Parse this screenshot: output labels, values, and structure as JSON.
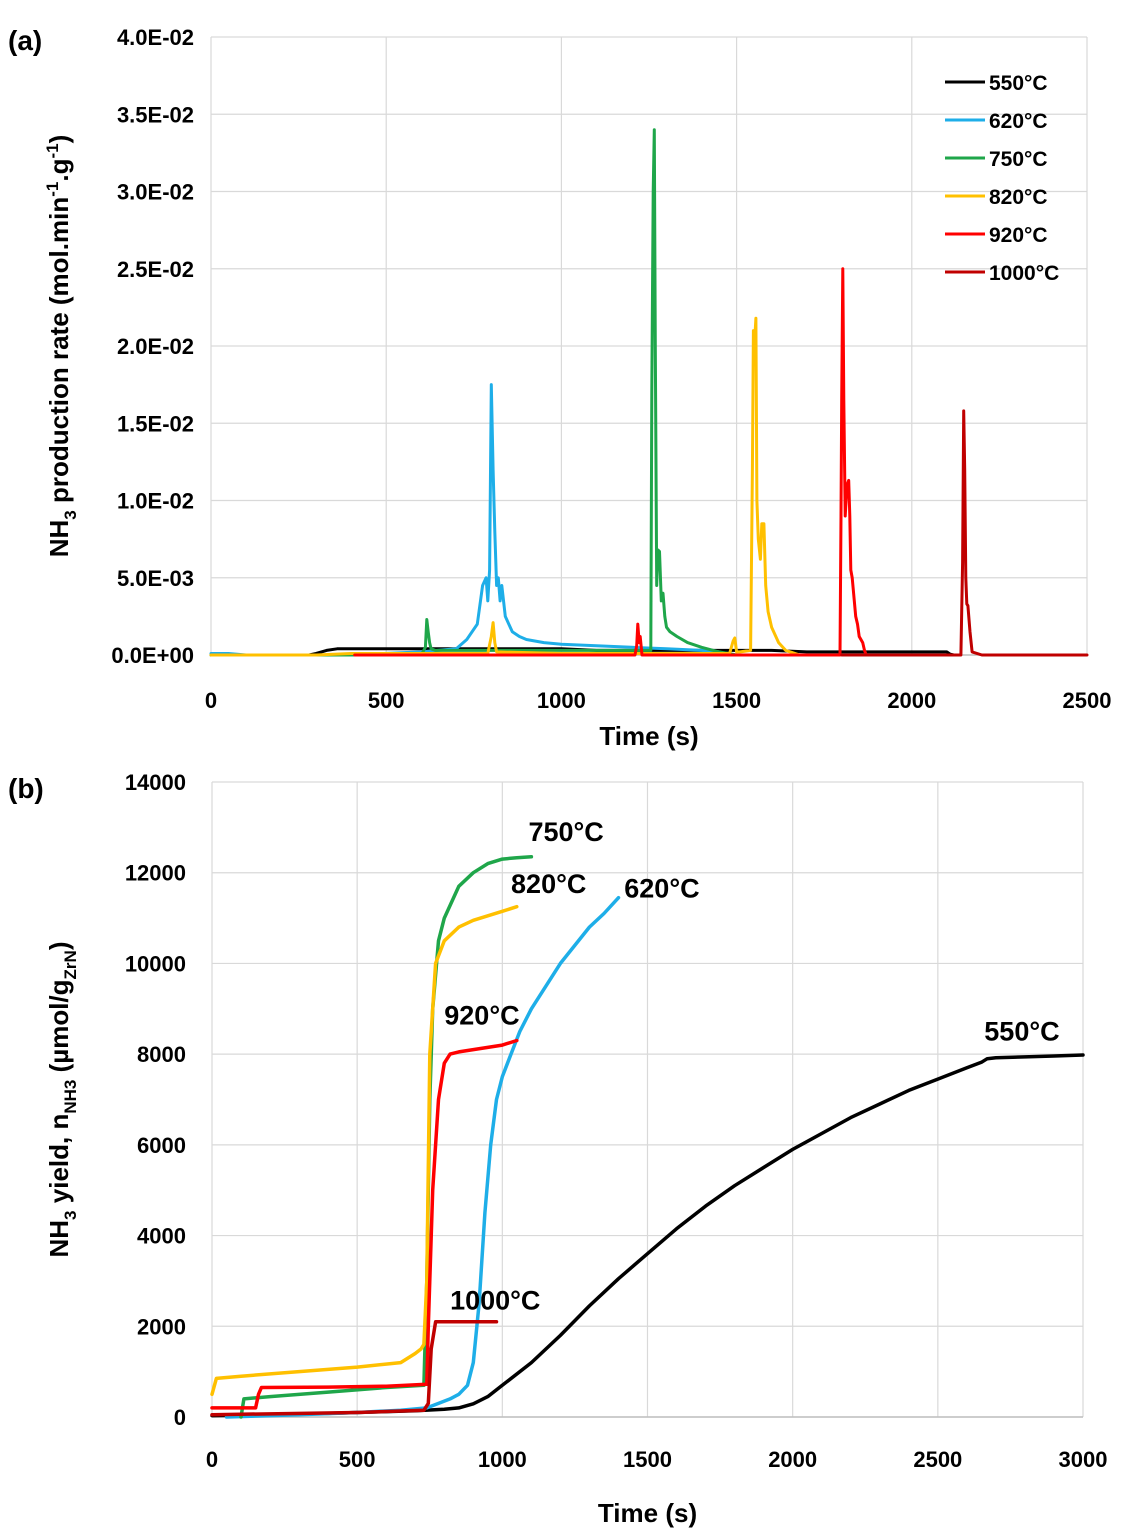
{
  "figure": {
    "panels": [
      "(a)",
      "(b)"
    ]
  },
  "chart_data": [
    {
      "type": "line",
      "panel_label": "(a)",
      "xlabel": "Time (s)",
      "ylabel_parts": [
        "NH",
        "3",
        " production rate (mol.min",
        "-1",
        ".g",
        "-1",
        ")"
      ],
      "xlim": [
        0,
        2500
      ],
      "ylim": [
        0,
        0.04
      ],
      "xticks": [
        "0",
        "500",
        "1000",
        "1500",
        "2000",
        "2500"
      ],
      "yticks": [
        "0.0E+00",
        "5.0E-03",
        "1.0E-02",
        "1.5E-02",
        "2.0E-02",
        "2.5E-02",
        "3.0E-02",
        "3.5E-02",
        "4.0E-02"
      ],
      "grid": true,
      "legend_position": "top-right",
      "series": [
        {
          "name": "550°C",
          "color": "#000000",
          "x": [
            0,
            280,
            300,
            330,
            360,
            400,
            500,
            600,
            700,
            800,
            900,
            1000,
            1100,
            1200,
            1300,
            1400,
            1500,
            1600,
            1700,
            1800,
            1900,
            2000,
            2100,
            2110,
            2120
          ],
          "y": [
            0,
            0,
            0.0001,
            0.0003,
            0.0004,
            0.0004,
            0.0004,
            0.0004,
            0.0004,
            0.0004,
            0.0004,
            0.0004,
            0.0003,
            0.0003,
            0.0003,
            0.0003,
            0.0003,
            0.0003,
            0.0002,
            0.0002,
            0.0002,
            0.0002,
            0.0002,
            5e-05,
            0
          ]
        },
        {
          "name": "620°C",
          "color": "#1EAEE8",
          "x": [
            0,
            50,
            100,
            200,
            300,
            400,
            600,
            700,
            730,
            760,
            775,
            785,
            790,
            795,
            800,
            805,
            810,
            815,
            820,
            825,
            830,
            840,
            850,
            860,
            880,
            900,
            950,
            1000,
            1100,
            1200,
            1300,
            1400,
            1450,
            1480
          ],
          "y": [
            0.0001,
            0.0001,
            0,
            0,
            0,
            0,
            0.0002,
            0.0004,
            0.001,
            0.002,
            0.0045,
            0.005,
            0.0035,
            0.0055,
            0.0175,
            0.012,
            0.008,
            0.0045,
            0.005,
            0.0035,
            0.0045,
            0.0025,
            0.002,
            0.0015,
            0.0012,
            0.001,
            0.0008,
            0.0007,
            0.0006,
            0.0005,
            0.0004,
            0.0003,
            0.0002,
            0
          ]
        },
        {
          "name": "750°C",
          "color": "#1FA64A",
          "x": [
            0,
            400,
            600,
            612,
            616,
            620,
            624,
            628,
            640,
            800,
            1000,
            1200,
            1255,
            1258,
            1262,
            1265,
            1268,
            1272,
            1275,
            1280,
            1285,
            1290,
            1295,
            1300,
            1310,
            1330,
            1360,
            1400,
            1450,
            1500
          ],
          "y": [
            0,
            0,
            0,
            0.0005,
            0.0023,
            0.0015,
            0.0008,
            0.0004,
            0.0003,
            0.0003,
            0.0003,
            0.0003,
            0.0003,
            0.017,
            0.03,
            0.034,
            0.02,
            0.0045,
            0.0068,
            0.0067,
            0.0035,
            0.004,
            0.0025,
            0.0018,
            0.0015,
            0.0012,
            0.0008,
            0.0005,
            0.0002,
            0
          ]
        },
        {
          "name": "820°C",
          "color": "#FFC000",
          "x": [
            0,
            300,
            400,
            500,
            700,
            790,
            800,
            805,
            810,
            815,
            1000,
            1200,
            1480,
            1490,
            1495,
            1500,
            1510,
            1540,
            1545,
            1548,
            1552,
            1555,
            1558,
            1562,
            1568,
            1572,
            1578,
            1583,
            1590,
            1600,
            1620,
            1640,
            1680
          ],
          "y": [
            0,
            0,
            0.0001,
            0.0001,
            0.0001,
            0.0001,
            0.0012,
            0.0021,
            0.0008,
            0.0002,
            0.0001,
            0.0001,
            0.0001,
            0.0009,
            0.0011,
            0.0002,
            0.0002,
            0.0003,
            0.012,
            0.021,
            0.0205,
            0.0218,
            0.01,
            0.0075,
            0.0062,
            0.0085,
            0.0085,
            0.0045,
            0.0028,
            0.0018,
            0.0008,
            0.0003,
            0
          ]
        },
        {
          "name": "920°C",
          "color": "#FF0000",
          "x": [
            410,
            1210,
            1215,
            1218,
            1222,
            1225,
            1230,
            1795,
            1798,
            1800,
            1803,
            1806,
            1810,
            1815,
            1820,
            1823,
            1826,
            1830,
            1840,
            1845,
            1850,
            1860,
            1865,
            1870
          ],
          "y": [
            0,
            0,
            0.0006,
            0.002,
            0.0008,
            0.0012,
            0,
            0,
            0.009,
            0.0165,
            0.025,
            0.0165,
            0.009,
            0.011,
            0.0113,
            0.009,
            0.0055,
            0.005,
            0.0025,
            0.002,
            0.0012,
            0.0008,
            0.0003,
            0
          ]
        },
        {
          "name": "1000°C",
          "color": "#C00000",
          "x": [
            1800,
            2140,
            2145,
            2148,
            2151,
            2154,
            2157,
            2160,
            2166,
            2172,
            2200,
            2500
          ],
          "y": [
            0,
            0,
            0.006,
            0.0158,
            0.012,
            0.005,
            0.0033,
            0.0032,
            0.0015,
            0.0002,
            0,
            0
          ]
        }
      ]
    },
    {
      "type": "line",
      "panel_label": "(b)",
      "xlabel": "Time (s)",
      "ylabel_parts": [
        "NH",
        "3",
        " yield, n",
        "NH3",
        " (µmol/g",
        "ZrN",
        ")"
      ],
      "xlim": [
        0,
        3000
      ],
      "ylim": [
        0,
        14000
      ],
      "xticks": [
        "0",
        "500",
        "1000",
        "1500",
        "2000",
        "2500",
        "3000"
      ],
      "yticks": [
        "0",
        "2000",
        "4000",
        "6000",
        "8000",
        "10000",
        "12000",
        "14000"
      ],
      "grid": true,
      "series": [
        {
          "name": "550°C",
          "color": "#000000",
          "x": [
            0,
            200,
            400,
            600,
            700,
            800,
            850,
            900,
            950,
            1000,
            1100,
            1200,
            1300,
            1400,
            1500,
            1600,
            1700,
            1800,
            1900,
            2000,
            2100,
            2200,
            2300,
            2400,
            2500,
            2600,
            2650,
            2670,
            2700,
            2800,
            2900,
            3000
          ],
          "y": [
            30,
            50,
            80,
            120,
            140,
            170,
            200,
            290,
            450,
            700,
            1200,
            1800,
            2450,
            3050,
            3600,
            4150,
            4650,
            5100,
            5500,
            5900,
            6250,
            6600,
            6900,
            7200,
            7450,
            7700,
            7820,
            7900,
            7920,
            7940,
            7960,
            7980
          ]
        },
        {
          "name": "620°C",
          "color": "#1EAEE8",
          "x": [
            50,
            300,
            500,
            650,
            740,
            780,
            820,
            850,
            880,
            900,
            920,
            940,
            960,
            980,
            1000,
            1030,
            1060,
            1100,
            1200,
            1300,
            1350,
            1400
          ],
          "y": [
            0,
            50,
            100,
            150,
            200,
            300,
            400,
            500,
            700,
            1200,
            2500,
            4500,
            6000,
            7000,
            7500,
            8000,
            8500,
            9000,
            10000,
            10800,
            11100,
            11450
          ]
        },
        {
          "name": "750°C",
          "color": "#1FA64A",
          "x": [
            100,
            110,
            200,
            400,
            600,
            730,
            740,
            750,
            760,
            780,
            800,
            850,
            900,
            950,
            1000,
            1050,
            1100
          ],
          "y": [
            0,
            400,
            450,
            550,
            650,
            700,
            3000,
            7000,
            9000,
            10500,
            11000,
            11700,
            12000,
            12200,
            12300,
            12330,
            12350
          ]
        },
        {
          "name": "820°C",
          "color": "#FFC000",
          "x": [
            0,
            15,
            100,
            300,
            500,
            650,
            700,
            720,
            730,
            740,
            750,
            770,
            800,
            850,
            900,
            950,
            1000,
            1050
          ],
          "y": [
            500,
            850,
            900,
            1000,
            1100,
            1200,
            1400,
            1500,
            1600,
            3000,
            8000,
            10000,
            10500,
            10800,
            10950,
            11050,
            11150,
            11250
          ]
        },
        {
          "name": "920°C",
          "color": "#FF0000",
          "x": [
            0,
            150,
            160,
            170,
            400,
            600,
            740,
            745,
            760,
            780,
            800,
            820,
            850,
            900,
            1000,
            1050
          ],
          "y": [
            200,
            200,
            500,
            650,
            660,
            680,
            720,
            2000,
            5000,
            7000,
            7800,
            8000,
            8050,
            8100,
            8200,
            8300
          ]
        },
        {
          "name": "1000°C",
          "color": "#C00000",
          "x": [
            0,
            500,
            730,
            745,
            755,
            770,
            800,
            900,
            980
          ],
          "y": [
            50,
            100,
            150,
            300,
            1500,
            2100,
            2100,
            2100,
            2100
          ]
        }
      ],
      "annotations": [
        {
          "text": "750°C",
          "x": 1090,
          "y": 12700
        },
        {
          "text": "820°C",
          "x": 1030,
          "y": 11550
        },
        {
          "text": "620°C",
          "x": 1420,
          "y": 11450
        },
        {
          "text": "920°C",
          "x": 800,
          "y": 8650
        },
        {
          "text": "550°C",
          "x": 2660,
          "y": 8300
        },
        {
          "text": "1000°C",
          "x": 820,
          "y": 2370
        }
      ]
    }
  ]
}
